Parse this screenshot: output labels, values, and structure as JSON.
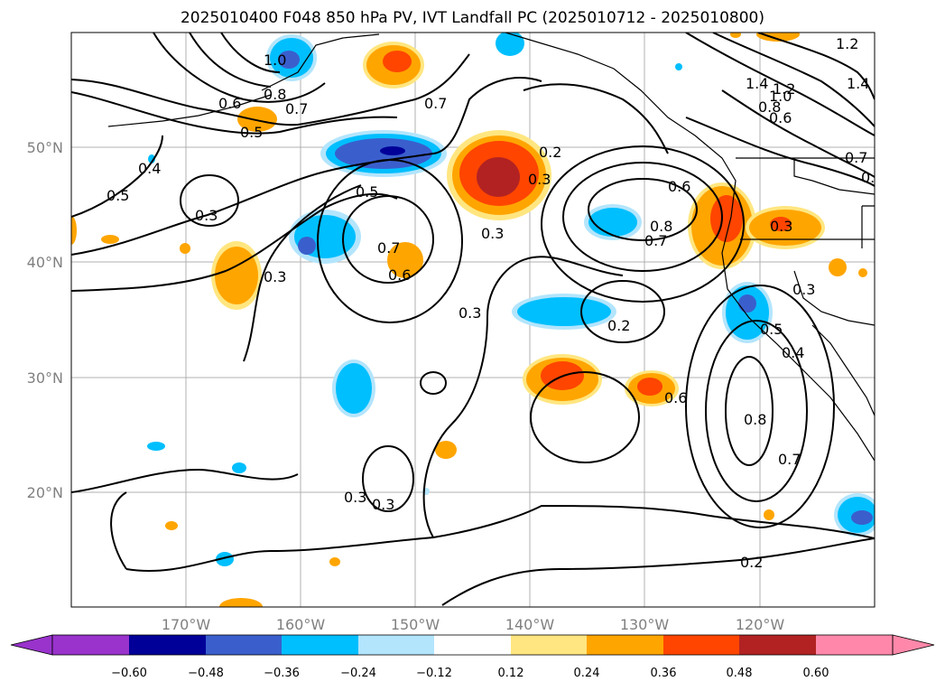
{
  "title": "2025010400 F048 850 hPa PV, IVT Landfall PC (2025010712 - 2025010800)",
  "map": {
    "lon_labels": [
      "170°W",
      "160°W",
      "150°W",
      "140°W",
      "130°W",
      "120°W"
    ],
    "lat_labels": [
      "50°N",
      "40°N",
      "30°N",
      "20°N"
    ],
    "grid": true
  },
  "colorbar": {
    "ticks": [
      "−0.60",
      "−0.48",
      "−0.36",
      "−0.24",
      "−0.12",
      "0.12",
      "0.24",
      "0.36",
      "0.48",
      "0.60"
    ],
    "colors": [
      "#9933cc",
      "#000099",
      "#3a5fcd",
      "#00bfff",
      "#b3e5fc",
      "#ffffff",
      "#ffe680",
      "#ffa500",
      "#ff4500",
      "#b22222",
      "#ff88aa"
    ],
    "extend": "both"
  },
  "contour_labels": [
    {
      "text": "1.0"
    },
    {
      "text": "0.8"
    },
    {
      "text": "0.7"
    },
    {
      "text": "0.6"
    },
    {
      "text": "0.5"
    },
    {
      "text": "0.4"
    },
    {
      "text": "0.5"
    },
    {
      "text": "0.3"
    },
    {
      "text": "0.3"
    },
    {
      "text": "0.5"
    },
    {
      "text": "0.7"
    },
    {
      "text": "0.6"
    },
    {
      "text": "0.7"
    },
    {
      "text": "0.2"
    },
    {
      "text": "0.3"
    },
    {
      "text": "0.3"
    },
    {
      "text": "0.3"
    },
    {
      "text": "0.6"
    },
    {
      "text": "0.8"
    },
    {
      "text": "0.7"
    },
    {
      "text": "0.3"
    },
    {
      "text": "0.2"
    },
    {
      "text": "0.6"
    },
    {
      "text": "0.8"
    },
    {
      "text": "0.7"
    },
    {
      "text": "0.5"
    },
    {
      "text": "0.4"
    },
    {
      "text": "0.3"
    },
    {
      "text": "0.2"
    },
    {
      "text": "0.3"
    },
    {
      "text": "1.4"
    },
    {
      "text": "1.2"
    },
    {
      "text": "1.0"
    },
    {
      "text": "0.8"
    },
    {
      "text": "0.6"
    },
    {
      "text": "1.2"
    },
    {
      "text": "1.4"
    },
    {
      "text": "0.7"
    },
    {
      "text": "0.6"
    },
    {
      "text": "0.3"
    }
  ]
}
